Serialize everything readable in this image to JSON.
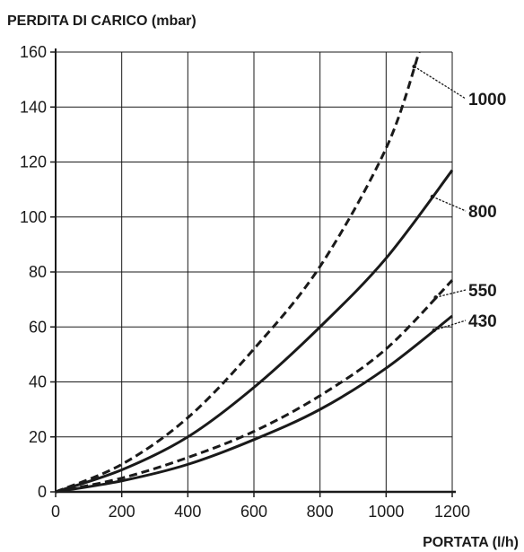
{
  "chart_data": {
    "type": "line",
    "title": "",
    "ylabel": "PERDITA DI CARICO (mbar)",
    "xlabel": "PORTATA (l/h)",
    "xlim": [
      0,
      1200
    ],
    "ylim": [
      0,
      160
    ],
    "x_ticks": [
      "0",
      "200",
      "400",
      "600",
      "800",
      "1000",
      "1200"
    ],
    "y_ticks": [
      "0",
      "20",
      "40",
      "60",
      "80",
      "100",
      "120",
      "140",
      "160"
    ],
    "grid": true,
    "colors": {
      "line": "#1a1a1a",
      "grid": "#1a1a1a"
    },
    "series": [
      {
        "name": "1000",
        "style": "dashed",
        "x": [
          0,
          200,
          400,
          600,
          800,
          1000,
          1100
        ],
        "y": [
          0,
          10,
          27,
          52,
          82,
          125,
          160
        ]
      },
      {
        "name": "800",
        "style": "solid",
        "x": [
          0,
          200,
          400,
          600,
          800,
          1000,
          1200
        ],
        "y": [
          0,
          8,
          20,
          38,
          60,
          85,
          117
        ]
      },
      {
        "name": "550",
        "style": "dashed",
        "x": [
          0,
          200,
          400,
          600,
          800,
          1000,
          1200
        ],
        "y": [
          0,
          5,
          12.5,
          22,
          35,
          52,
          77
        ]
      },
      {
        "name": "430",
        "style": "solid",
        "x": [
          0,
          200,
          400,
          600,
          800,
          1000,
          1200
        ],
        "y": [
          0,
          4,
          10,
          19,
          30,
          45,
          64
        ]
      }
    ]
  }
}
